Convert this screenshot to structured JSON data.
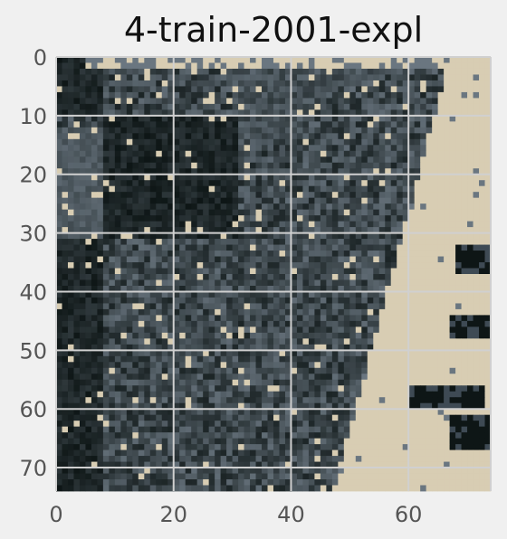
{
  "chart_data": {
    "type": "heatmap",
    "title": "4-train-2001-expl",
    "xlabel": "",
    "ylabel": "",
    "xlim": [
      0,
      74
    ],
    "ylim": [
      74,
      0
    ],
    "grid": true,
    "x_ticks": [
      0,
      20,
      40,
      60
    ],
    "y_ticks": [
      0,
      10,
      20,
      30,
      40,
      50,
      60,
      70
    ],
    "image_size": [
      74,
      74
    ],
    "colors": {
      "background": "#f0f0f0",
      "grid": "#d0d0d0",
      "beige": "#d8cdb3",
      "slate_dark": "#0e1616",
      "slate_mid": "#3e4a54",
      "slate_light": "#6a7680",
      "tick_text": "#555555",
      "title_text": "#111111"
    }
  }
}
